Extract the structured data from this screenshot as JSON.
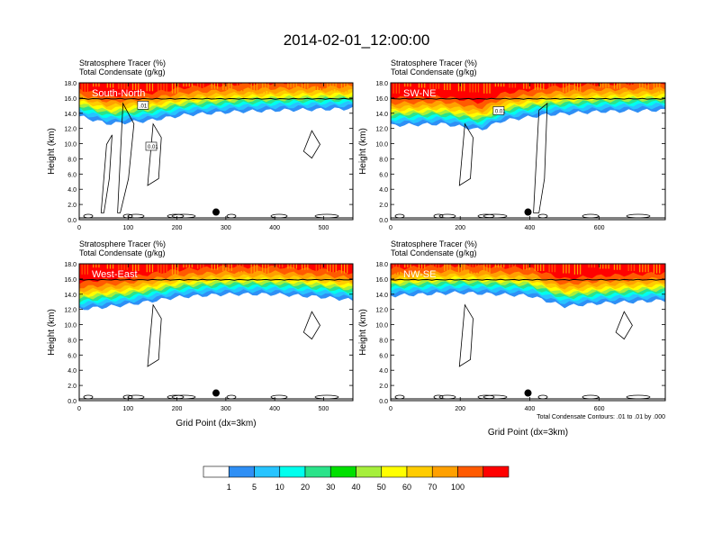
{
  "title": "2014-02-01_12:00:00",
  "chart_data": [
    {
      "type": "heatmap",
      "label": "South-North",
      "title_line1": "Stratosphere Tracer   (%)",
      "title_line2": "Total Condensate   (g/kg)",
      "ylabel": "Height (km)",
      "xlabel": "",
      "xlim": [
        0,
        560
      ],
      "ylim": [
        0,
        18
      ],
      "xticks": [
        0,
        100,
        200,
        300,
        400,
        500
      ],
      "yticks": [
        0,
        2,
        4,
        6,
        8,
        10,
        12,
        14,
        16,
        18
      ],
      "ytick_labels": [
        "0.0",
        "2.0",
        "4.0",
        "6.0",
        "8.0",
        "10.0",
        "12.0",
        "14.0",
        "16.0",
        "18.0"
      ],
      "tropopause_km": [
        [
          0,
          14.2
        ],
        [
          60,
          13.2
        ],
        [
          140,
          13.6
        ],
        [
          220,
          14.4
        ],
        [
          320,
          14.8
        ],
        [
          420,
          15.0
        ],
        [
          560,
          15.2
        ]
      ],
      "marker": {
        "x": 280,
        "y": 1.0
      },
      "contour_labels": [
        ".01",
        "0.01"
      ]
    },
    {
      "type": "heatmap",
      "label": "SW-NE",
      "title_line1": "Stratosphere Tracer   (%)",
      "title_line2": "Total Condensate   (g/kg)",
      "ylabel": "Height (km)",
      "xlabel": "",
      "xlim": [
        0,
        790
      ],
      "ylim": [
        0,
        18
      ],
      "xticks": [
        0,
        200,
        400,
        600
      ],
      "yticks": [
        0,
        2,
        4,
        6,
        8,
        10,
        12,
        14,
        16,
        18
      ],
      "ytick_labels": [
        "0.0",
        "2.0",
        "4.0",
        "6.0",
        "8.0",
        "10.0",
        "12.0",
        "14.0",
        "16.0",
        "18.0"
      ],
      "tropopause_km": [
        [
          0,
          13.0
        ],
        [
          150,
          13.2
        ],
        [
          260,
          12.4
        ],
        [
          320,
          13.6
        ],
        [
          450,
          14.4
        ],
        [
          600,
          14.8
        ],
        [
          790,
          15.0
        ]
      ],
      "marker": {
        "x": 395,
        "y": 1.0
      },
      "contour_labels": [
        "0.01"
      ]
    },
    {
      "type": "heatmap",
      "label": "West-East",
      "title_line1": "Stratosphere Tracer   (%)",
      "title_line2": "Total Condensate   (g/kg)",
      "ylabel": "Height (km)",
      "xlabel": "Grid Point (dx=3km)",
      "xlim": [
        0,
        560
      ],
      "ylim": [
        0,
        18
      ],
      "xticks": [
        0,
        100,
        200,
        300,
        400,
        500
      ],
      "yticks": [
        0,
        2,
        4,
        6,
        8,
        10,
        12,
        14,
        16,
        18
      ],
      "ytick_labels": [
        "0.0",
        "2.0",
        "4.0",
        "6.0",
        "8.0",
        "10.0",
        "12.0",
        "14.0",
        "16.0",
        "18.0"
      ],
      "tropopause_km": [
        [
          0,
          12.6
        ],
        [
          100,
          13.2
        ],
        [
          200,
          14.2
        ],
        [
          300,
          14.6
        ],
        [
          400,
          14.6
        ],
        [
          500,
          14.2
        ],
        [
          560,
          13.8
        ]
      ],
      "marker": {
        "x": 280,
        "y": 1.0
      },
      "contour_labels": []
    },
    {
      "type": "heatmap",
      "label": "NW-SE",
      "title_line1": "Stratosphere Tracer   (%)",
      "title_line2": "Total Condensate   (g/kg)",
      "ylabel": "Height (km)",
      "xlabel": "Grid Point (dx=3km)",
      "xlim": [
        0,
        790
      ],
      "ylim": [
        0,
        18
      ],
      "xticks": [
        0,
        200,
        400,
        600
      ],
      "yticks": [
        0,
        2,
        4,
        6,
        8,
        10,
        12,
        14,
        16,
        18
      ],
      "ytick_labels": [
        "0.0",
        "2.0",
        "4.0",
        "6.0",
        "8.0",
        "10.0",
        "12.0",
        "14.0",
        "16.0",
        "18.0"
      ],
      "tropopause_km": [
        [
          0,
          14.4
        ],
        [
          200,
          14.8
        ],
        [
          400,
          14.4
        ],
        [
          500,
          13.0
        ],
        [
          600,
          13.4
        ],
        [
          700,
          13.6
        ],
        [
          790,
          13.8
        ]
      ],
      "marker": {
        "x": 395,
        "y": 1.0
      },
      "contour_labels": [],
      "footnote": "Total Condensate Contours: .01 to .01 by .000"
    }
  ],
  "colorbar": {
    "labels": [
      "1",
      "5",
      "10",
      "20",
      "30",
      "40",
      "50",
      "60",
      "70",
      "100"
    ],
    "colors": [
      "#ffffff",
      "#2f8ff5",
      "#27c4ff",
      "#00ffee",
      "#2be38a",
      "#00e000",
      "#a6ef3c",
      "#ffff00",
      "#ffcc00",
      "#ffa000",
      "#ff5a00",
      "#ff0000"
    ]
  }
}
